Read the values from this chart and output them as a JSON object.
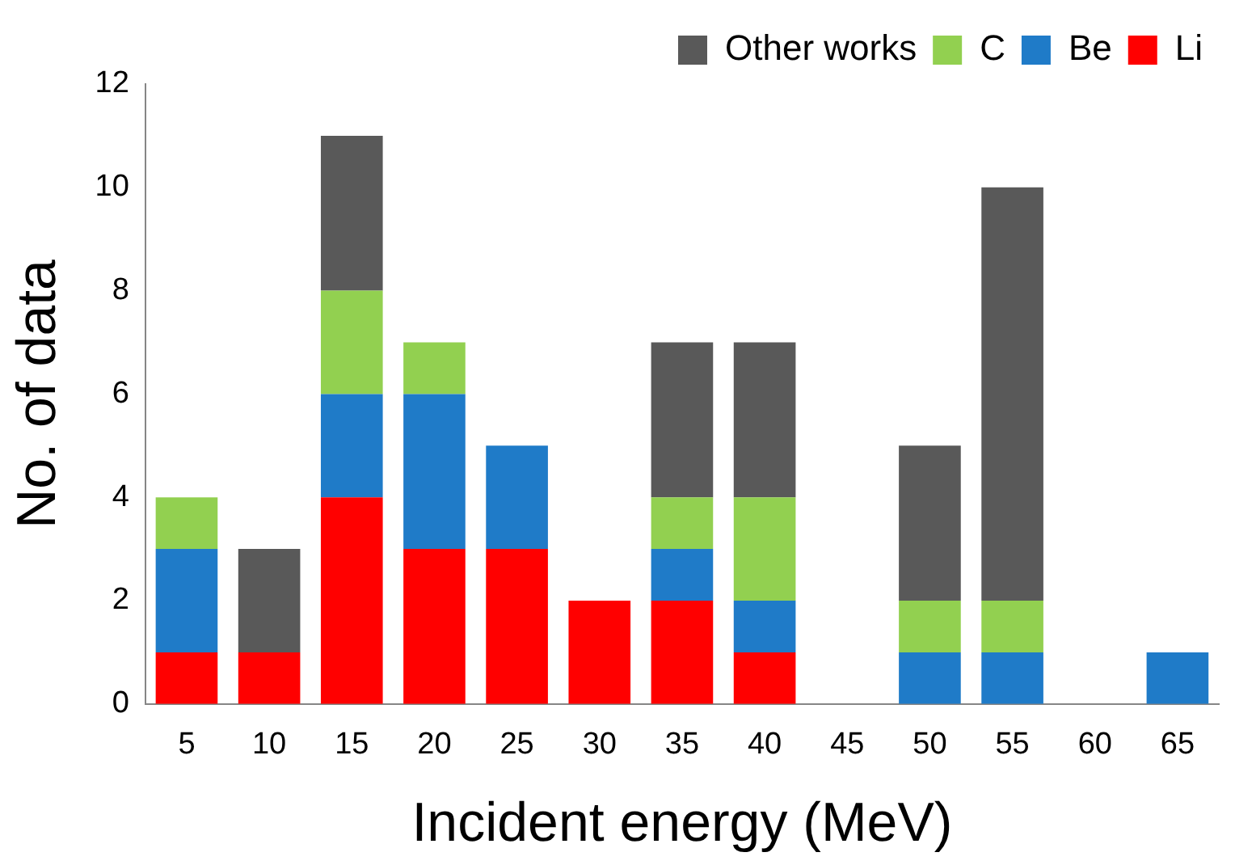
{
  "chart_data": {
    "type": "bar",
    "stacked": true,
    "xlabel": "Incident energy (MeV)",
    "ylabel": "No. of data",
    "categories": [
      "5",
      "10",
      "15",
      "20",
      "25",
      "30",
      "35",
      "40",
      "45",
      "50",
      "55",
      "60",
      "65"
    ],
    "series": [
      {
        "name": "Li",
        "color": "#ff0000",
        "values": [
          1,
          1,
          4,
          3,
          3,
          2,
          2,
          1,
          0,
          0,
          0,
          0,
          0
        ]
      },
      {
        "name": "Be",
        "color": "#1f7bc8",
        "values": [
          2,
          0,
          2,
          3,
          2,
          0,
          1,
          1,
          0,
          1,
          1,
          0,
          1
        ]
      },
      {
        "name": "C",
        "color": "#92d050",
        "values": [
          1,
          0,
          2,
          1,
          0,
          0,
          1,
          2,
          0,
          1,
          1,
          0,
          0
        ]
      },
      {
        "name": "Other works",
        "color": "#595959",
        "values": [
          0,
          2,
          3,
          0,
          0,
          0,
          3,
          3,
          0,
          3,
          8,
          0,
          0
        ]
      }
    ],
    "ylim": [
      0,
      12
    ],
    "yticks": [
      0,
      2,
      4,
      6,
      8,
      10,
      12
    ],
    "grid": false,
    "legend": "top right"
  }
}
